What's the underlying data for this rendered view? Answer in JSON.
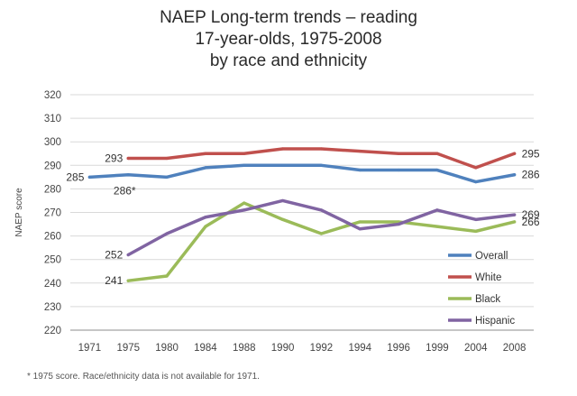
{
  "chart_data": {
    "type": "line",
    "title_lines": [
      "NAEP Long-term trends – reading",
      "17-year-olds, 1975-2008",
      "by race and ethnicity"
    ],
    "ylabel": "NAEP score",
    "xlabel": "",
    "ylim": [
      220,
      320
    ],
    "ytick_step": 10,
    "grid": true,
    "categories": [
      "1971",
      "1975",
      "1980",
      "1984",
      "1988",
      "1990",
      "1992",
      "1994",
      "1996",
      "1999",
      "2004",
      "2008"
    ],
    "series": [
      {
        "name": "Overall",
        "color": "#4f81bd",
        "values": [
          285,
          286,
          285,
          289,
          290,
          290,
          290,
          288,
          288,
          288,
          283,
          286
        ]
      },
      {
        "name": "White",
        "color": "#c0504d",
        "values": [
          null,
          293,
          293,
          295,
          295,
          297,
          297,
          296,
          295,
          295,
          289,
          295
        ]
      },
      {
        "name": "Black",
        "color": "#9bbb59",
        "values": [
          null,
          241,
          243,
          264,
          274,
          267,
          261,
          266,
          266,
          264,
          262,
          266
        ]
      },
      {
        "name": "Hispanic",
        "color": "#8064a2",
        "values": [
          null,
          252,
          261,
          268,
          271,
          275,
          271,
          263,
          265,
          271,
          267,
          269
        ]
      }
    ],
    "data_labels": [
      {
        "text": "285",
        "series": "Overall",
        "index": 0,
        "side": "left"
      },
      {
        "text": "286*",
        "series": "Overall",
        "index": 1,
        "side": "below"
      },
      {
        "text": "286",
        "series": "Overall",
        "index": 11,
        "side": "right"
      },
      {
        "text": "293",
        "series": "White",
        "index": 1,
        "side": "left"
      },
      {
        "text": "295",
        "series": "White",
        "index": 11,
        "side": "right"
      },
      {
        "text": "241",
        "series": "Black",
        "index": 1,
        "side": "left"
      },
      {
        "text": "266",
        "series": "Black",
        "index": 11,
        "side": "right"
      },
      {
        "text": "252",
        "series": "Hispanic",
        "index": 1,
        "side": "left"
      },
      {
        "text": "269",
        "series": "Hispanic",
        "index": 11,
        "side": "right"
      }
    ],
    "legend_position": "right",
    "footnote": "* 1975 score. Race/ethnicity data is not available for 1971."
  }
}
